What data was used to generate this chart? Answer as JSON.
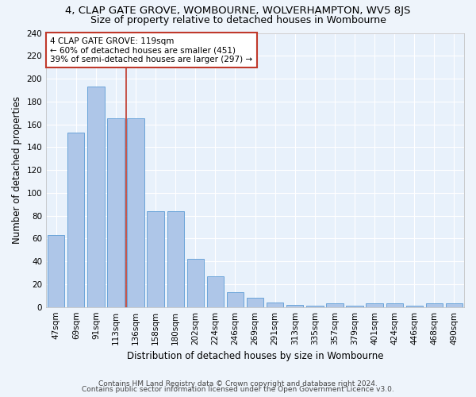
{
  "title": "4, CLAP GATE GROVE, WOMBOURNE, WOLVERHAMPTON, WV5 8JS",
  "subtitle": "Size of property relative to detached houses in Wombourne",
  "xlabel": "Distribution of detached houses by size in Wombourne",
  "ylabel": "Number of detached properties",
  "categories": [
    "47sqm",
    "69sqm",
    "91sqm",
    "113sqm",
    "136sqm",
    "158sqm",
    "180sqm",
    "202sqm",
    "224sqm",
    "246sqm",
    "269sqm",
    "291sqm",
    "313sqm",
    "335sqm",
    "357sqm",
    "379sqm",
    "401sqm",
    "424sqm",
    "446sqm",
    "468sqm",
    "490sqm"
  ],
  "values": [
    63,
    153,
    193,
    165,
    165,
    84,
    84,
    42,
    27,
    13,
    8,
    4,
    2,
    1,
    3,
    1,
    3,
    3,
    1,
    3,
    3
  ],
  "bar_color": "#aec6e8",
  "bar_edge_color": "#5b9bd5",
  "property_label": "4 CLAP GATE GROVE: 119sqm",
  "annotation_line1": "← 60% of detached houses are smaller (451)",
  "annotation_line2": "39% of semi-detached houses are larger (297) →",
  "vline_color": "#c0392b",
  "ylim": [
    0,
    240
  ],
  "yticks": [
    0,
    20,
    40,
    60,
    80,
    100,
    120,
    140,
    160,
    180,
    200,
    220,
    240
  ],
  "footer1": "Contains HM Land Registry data © Crown copyright and database right 2024.",
  "footer2": "Contains public sector information licensed under the Open Government Licence v3.0.",
  "fig_bg_color": "#eef4fb",
  "bg_color": "#e8f1fb",
  "grid_color": "#ffffff",
  "title_fontsize": 9.5,
  "subtitle_fontsize": 9,
  "axis_label_fontsize": 8.5,
  "tick_fontsize": 7.5,
  "footer_fontsize": 6.5,
  "vline_x": 3.5
}
